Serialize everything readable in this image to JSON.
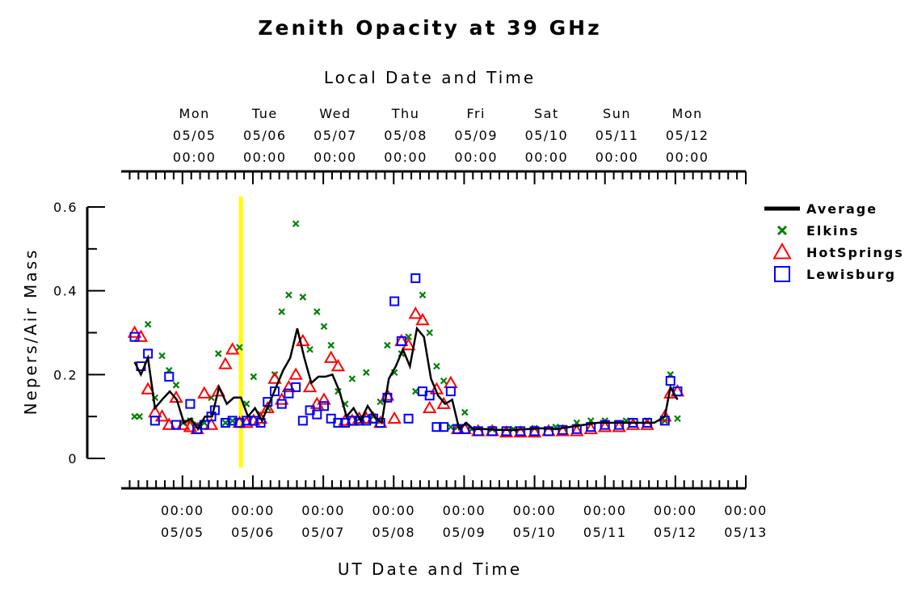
{
  "chart_data": {
    "type": "scatter",
    "title": "Zenith Opacity at 39 GHz",
    "top_axis_label": "Local Date and Time",
    "bottom_axis_label": "UT Date and Time",
    "ylabel": "Nepers/Air Mass",
    "ylim": [
      0,
      0.6
    ],
    "y_ticks": [
      {
        "value": 0,
        "label": "0"
      },
      {
        "value": 0.2,
        "label": "0.2"
      },
      {
        "value": 0.4,
        "label": "0.4"
      },
      {
        "value": 0.6,
        "label": "0.6"
      }
    ],
    "xlim": [
      -0.87,
      8.0
    ],
    "top_ticks": [
      {
        "x": 0.0,
        "day": "Mon",
        "date": "05/05",
        "time": "00:00"
      },
      {
        "x": 1.0,
        "day": "Tue",
        "date": "05/06",
        "time": "00:00"
      },
      {
        "x": 2.0,
        "day": "Wed",
        "date": "05/07",
        "time": "00:00"
      },
      {
        "x": 3.0,
        "day": "Thu",
        "date": "05/08",
        "time": "00:00"
      },
      {
        "x": 4.0,
        "day": "Fri",
        "date": "05/09",
        "time": "00:00"
      },
      {
        "x": 5.0,
        "day": "Sat",
        "date": "05/10",
        "time": "00:00"
      },
      {
        "x": 6.0,
        "day": "Sun",
        "date": "05/11",
        "time": "00:00"
      },
      {
        "x": 7.0,
        "day": "Mon",
        "date": "05/12",
        "time": "00:00"
      }
    ],
    "bottom_ticks": [
      {
        "x": 0.0,
        "time": "00:00",
        "date": "05/05"
      },
      {
        "x": 1.0,
        "time": "00:00",
        "date": "05/06"
      },
      {
        "x": 2.0,
        "time": "00:00",
        "date": "05/07"
      },
      {
        "x": 3.0,
        "time": "00:00",
        "date": "05/08"
      },
      {
        "x": 4.0,
        "time": "00:00",
        "date": "05/09"
      },
      {
        "x": 5.0,
        "time": "00:00",
        "date": "05/10"
      },
      {
        "x": 6.0,
        "time": "00:00",
        "date": "05/11"
      },
      {
        "x": 7.0,
        "time": "00:00",
        "date": "05/12"
      },
      {
        "x": 8.0,
        "time": "00:00",
        "date": "05/13"
      }
    ],
    "marker_line_x": 0.83,
    "colors": {
      "average": "#000000",
      "elkins": "#008000",
      "hotsprings": "#ff0000",
      "lewisburg": "#0000ff",
      "marker": "#ffff00"
    },
    "legend": [
      "Average",
      "Elkins",
      "HotSprings",
      "Lewisburg"
    ],
    "legend_position": "right",
    "series": [
      {
        "name": "Average",
        "style": "line",
        "points": [
          [
            -0.68,
            0.23
          ],
          [
            -0.59,
            0.2
          ],
          [
            -0.49,
            0.24
          ],
          [
            -0.39,
            0.12
          ],
          [
            -0.29,
            0.14
          ],
          [
            -0.18,
            0.16
          ],
          [
            -0.08,
            0.14
          ],
          [
            0.02,
            0.085
          ],
          [
            0.12,
            0.095
          ],
          [
            0.22,
            0.07
          ],
          [
            0.32,
            0.1
          ],
          [
            0.42,
            0.1
          ],
          [
            0.52,
            0.17
          ],
          [
            0.63,
            0.13
          ],
          [
            0.73,
            0.145
          ],
          [
            0.83,
            0.145
          ],
          [
            0.93,
            0.1
          ],
          [
            1.03,
            0.12
          ],
          [
            1.13,
            0.09
          ],
          [
            1.23,
            0.13
          ],
          [
            1.33,
            0.17
          ],
          [
            1.43,
            0.21
          ],
          [
            1.53,
            0.24
          ],
          [
            1.63,
            0.31
          ],
          [
            1.73,
            0.24
          ],
          [
            1.83,
            0.18
          ],
          [
            1.93,
            0.195
          ],
          [
            2.03,
            0.195
          ],
          [
            2.13,
            0.2
          ],
          [
            2.23,
            0.16
          ],
          [
            2.33,
            0.1
          ],
          [
            2.43,
            0.12
          ],
          [
            2.53,
            0.09
          ],
          [
            2.63,
            0.125
          ],
          [
            2.73,
            0.1
          ],
          [
            2.83,
            0.085
          ],
          [
            2.93,
            0.19
          ],
          [
            3.03,
            0.22
          ],
          [
            3.13,
            0.26
          ],
          [
            3.23,
            0.22
          ],
          [
            3.33,
            0.31
          ],
          [
            3.43,
            0.29
          ],
          [
            3.53,
            0.19
          ],
          [
            3.63,
            0.15
          ],
          [
            3.73,
            0.13
          ],
          [
            3.83,
            0.14
          ],
          [
            3.93,
            0.07
          ],
          [
            4.03,
            0.085
          ],
          [
            4.13,
            0.07
          ],
          [
            4.3,
            0.07
          ],
          [
            4.5,
            0.068
          ],
          [
            4.7,
            0.068
          ],
          [
            4.9,
            0.07
          ],
          [
            5.1,
            0.072
          ],
          [
            5.3,
            0.07
          ],
          [
            5.5,
            0.075
          ],
          [
            5.7,
            0.08
          ],
          [
            5.9,
            0.085
          ],
          [
            6.1,
            0.085
          ],
          [
            6.3,
            0.085
          ],
          [
            6.5,
            0.085
          ],
          [
            6.7,
            0.085
          ],
          [
            6.85,
            0.1
          ],
          [
            6.93,
            0.17
          ],
          [
            7.03,
            0.14
          ]
        ]
      },
      {
        "name": "Elkins",
        "style": "x",
        "points": [
          [
            -0.68,
            0.1
          ],
          [
            -0.61,
            0.1
          ],
          [
            -0.49,
            0.32
          ],
          [
            -0.39,
            0.145
          ],
          [
            -0.29,
            0.245
          ],
          [
            -0.19,
            0.21
          ],
          [
            -0.09,
            0.175
          ],
          [
            0.01,
            0.085
          ],
          [
            0.11,
            0.09
          ],
          [
            0.21,
            0.08
          ],
          [
            0.31,
            0.085
          ],
          [
            0.41,
            0.145
          ],
          [
            0.51,
            0.25
          ],
          [
            0.61,
            0.085
          ],
          [
            0.71,
            0.09
          ],
          [
            0.81,
            0.265
          ],
          [
            0.91,
            0.13
          ],
          [
            1.01,
            0.195
          ],
          [
            1.11,
            0.105
          ],
          [
            1.21,
            0.12
          ],
          [
            1.31,
            0.2
          ],
          [
            1.41,
            0.35
          ],
          [
            1.51,
            0.39
          ],
          [
            1.61,
            0.56
          ],
          [
            1.71,
            0.385
          ],
          [
            1.81,
            0.26
          ],
          [
            1.91,
            0.35
          ],
          [
            2.01,
            0.315
          ],
          [
            2.11,
            0.27
          ],
          [
            2.21,
            0.16
          ],
          [
            2.31,
            0.13
          ],
          [
            2.41,
            0.19
          ],
          [
            2.51,
            0.095
          ],
          [
            2.61,
            0.205
          ],
          [
            2.71,
            0.1
          ],
          [
            2.81,
            0.135
          ],
          [
            2.91,
            0.27
          ],
          [
            3.01,
            0.205
          ],
          [
            3.11,
            0.25
          ],
          [
            3.21,
            0.29
          ],
          [
            3.31,
            0.16
          ],
          [
            3.41,
            0.39
          ],
          [
            3.51,
            0.3
          ],
          [
            3.61,
            0.22
          ],
          [
            3.71,
            0.185
          ],
          [
            3.81,
            0.075
          ],
          [
            3.91,
            0.075
          ],
          [
            4.01,
            0.11
          ],
          [
            4.11,
            0.07
          ],
          [
            4.4,
            0.07
          ],
          [
            4.7,
            0.07
          ],
          [
            5.0,
            0.072
          ],
          [
            5.3,
            0.075
          ],
          [
            5.6,
            0.085
          ],
          [
            5.8,
            0.09
          ],
          [
            6.0,
            0.09
          ],
          [
            6.3,
            0.09
          ],
          [
            6.6,
            0.09
          ],
          [
            6.85,
            0.09
          ],
          [
            6.93,
            0.2
          ],
          [
            7.03,
            0.095
          ]
        ]
      },
      {
        "name": "HotSprings",
        "style": "triangle",
        "points": [
          [
            -0.68,
            0.3
          ],
          [
            -0.59,
            0.29
          ],
          [
            -0.49,
            0.165
          ],
          [
            -0.39,
            0.11
          ],
          [
            -0.29,
            0.1
          ],
          [
            -0.19,
            0.08
          ],
          [
            -0.09,
            0.145
          ],
          [
            0.01,
            0.08
          ],
          [
            0.11,
            0.075
          ],
          [
            0.21,
            0.07
          ],
          [
            0.31,
            0.155
          ],
          [
            0.41,
            0.08
          ],
          [
            0.51,
            0.16
          ],
          [
            0.61,
            0.225
          ],
          [
            0.71,
            0.26
          ],
          [
            0.81,
            0.085
          ],
          [
            0.91,
            0.085
          ],
          [
            1.01,
            0.09
          ],
          [
            1.11,
            0.095
          ],
          [
            1.21,
            0.12
          ],
          [
            1.31,
            0.19
          ],
          [
            1.41,
            0.14
          ],
          [
            1.51,
            0.17
          ],
          [
            1.61,
            0.2
          ],
          [
            1.71,
            0.28
          ],
          [
            1.81,
            0.17
          ],
          [
            1.91,
            0.13
          ],
          [
            2.01,
            0.14
          ],
          [
            2.11,
            0.24
          ],
          [
            2.21,
            0.22
          ],
          [
            2.31,
            0.09
          ],
          [
            2.41,
            0.09
          ],
          [
            2.51,
            0.095
          ],
          [
            2.61,
            0.095
          ],
          [
            2.71,
            0.095
          ],
          [
            2.81,
            0.085
          ],
          [
            2.91,
            0.15
          ],
          [
            3.01,
            0.095
          ],
          [
            3.11,
            0.28
          ],
          [
            3.21,
            0.27
          ],
          [
            3.31,
            0.345
          ],
          [
            3.41,
            0.33
          ],
          [
            3.51,
            0.12
          ],
          [
            3.61,
            0.165
          ],
          [
            3.71,
            0.13
          ],
          [
            3.81,
            0.18
          ],
          [
            3.91,
            0.07
          ],
          [
            4.01,
            0.07
          ],
          [
            4.2,
            0.065
          ],
          [
            4.4,
            0.065
          ],
          [
            4.6,
            0.062
          ],
          [
            4.8,
            0.062
          ],
          [
            5.0,
            0.062
          ],
          [
            5.2,
            0.065
          ],
          [
            5.4,
            0.065
          ],
          [
            5.6,
            0.065
          ],
          [
            5.8,
            0.07
          ],
          [
            6.0,
            0.075
          ],
          [
            6.2,
            0.075
          ],
          [
            6.4,
            0.08
          ],
          [
            6.6,
            0.08
          ],
          [
            6.85,
            0.1
          ],
          [
            6.93,
            0.155
          ],
          [
            7.03,
            0.16
          ]
        ]
      },
      {
        "name": "Lewisburg",
        "style": "square",
        "points": [
          [
            -0.68,
            0.29
          ],
          [
            -0.59,
            0.22
          ],
          [
            -0.49,
            0.25
          ],
          [
            -0.39,
            0.09
          ],
          [
            -0.19,
            0.195
          ],
          [
            -0.09,
            0.08
          ],
          [
            0.11,
            0.13
          ],
          [
            0.21,
            0.07
          ],
          [
            0.31,
            0.08
          ],
          [
            0.41,
            0.1
          ],
          [
            0.46,
            0.115
          ],
          [
            0.61,
            0.085
          ],
          [
            0.71,
            0.09
          ],
          [
            0.81,
            0.085
          ],
          [
            0.91,
            0.09
          ],
          [
            1.01,
            0.09
          ],
          [
            1.11,
            0.085
          ],
          [
            1.21,
            0.135
          ],
          [
            1.31,
            0.16
          ],
          [
            1.41,
            0.13
          ],
          [
            1.51,
            0.155
          ],
          [
            1.61,
            0.17
          ],
          [
            1.71,
            0.09
          ],
          [
            1.81,
            0.115
          ],
          [
            1.91,
            0.105
          ],
          [
            2.01,
            0.125
          ],
          [
            2.11,
            0.095
          ],
          [
            2.21,
            0.085
          ],
          [
            2.31,
            0.085
          ],
          [
            2.41,
            0.09
          ],
          [
            2.51,
            0.09
          ],
          [
            2.61,
            0.09
          ],
          [
            2.71,
            0.095
          ],
          [
            2.81,
            0.085
          ],
          [
            2.91,
            0.145
          ],
          [
            3.01,
            0.375
          ],
          [
            3.11,
            0.28
          ],
          [
            3.21,
            0.095
          ],
          [
            3.31,
            0.43
          ],
          [
            3.41,
            0.16
          ],
          [
            3.51,
            0.15
          ],
          [
            3.61,
            0.075
          ],
          [
            3.71,
            0.075
          ],
          [
            3.81,
            0.16
          ],
          [
            3.91,
            0.07
          ],
          [
            4.01,
            0.07
          ],
          [
            4.2,
            0.065
          ],
          [
            4.4,
            0.065
          ],
          [
            4.6,
            0.065
          ],
          [
            4.8,
            0.065
          ],
          [
            5.0,
            0.065
          ],
          [
            5.2,
            0.065
          ],
          [
            5.4,
            0.068
          ],
          [
            5.6,
            0.07
          ],
          [
            5.8,
            0.075
          ],
          [
            6.0,
            0.08
          ],
          [
            6.2,
            0.08
          ],
          [
            6.4,
            0.085
          ],
          [
            6.6,
            0.085
          ],
          [
            6.85,
            0.09
          ],
          [
            6.93,
            0.185
          ],
          [
            7.03,
            0.16
          ]
        ]
      }
    ]
  }
}
